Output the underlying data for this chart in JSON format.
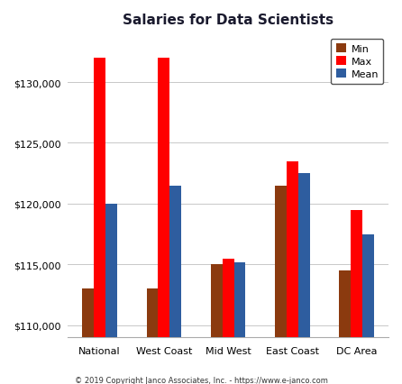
{
  "title": "Salaries for Data Scientists",
  "categories": [
    "National",
    "West Coast",
    "Mid West",
    "East Coast",
    "DC Area"
  ],
  "min_values": [
    113000,
    113000,
    115000,
    121500,
    114500
  ],
  "max_values": [
    132000,
    132000,
    115500,
    123500,
    119500
  ],
  "mean_values": [
    120000,
    121500,
    115200,
    122500,
    117500
  ],
  "colors": {
    "Min": "#8B3A0F",
    "Max": "#FF0000",
    "Mean": "#2E5D9F"
  },
  "ylim": [
    109000,
    134000
  ],
  "yticks": [
    110000,
    115000,
    120000,
    125000,
    130000
  ],
  "legend_labels": [
    "Min",
    "Max",
    "Mean"
  ],
  "footer": "© 2019 Copyright Janco Associates, Inc. - https://www.e-janco.com",
  "background_color": "#FFFFFF",
  "grid_color": "#C8C8C8",
  "bar_width": 0.18,
  "title_fontsize": 11,
  "tick_fontsize": 8,
  "legend_fontsize": 8,
  "footer_fontsize": 6
}
